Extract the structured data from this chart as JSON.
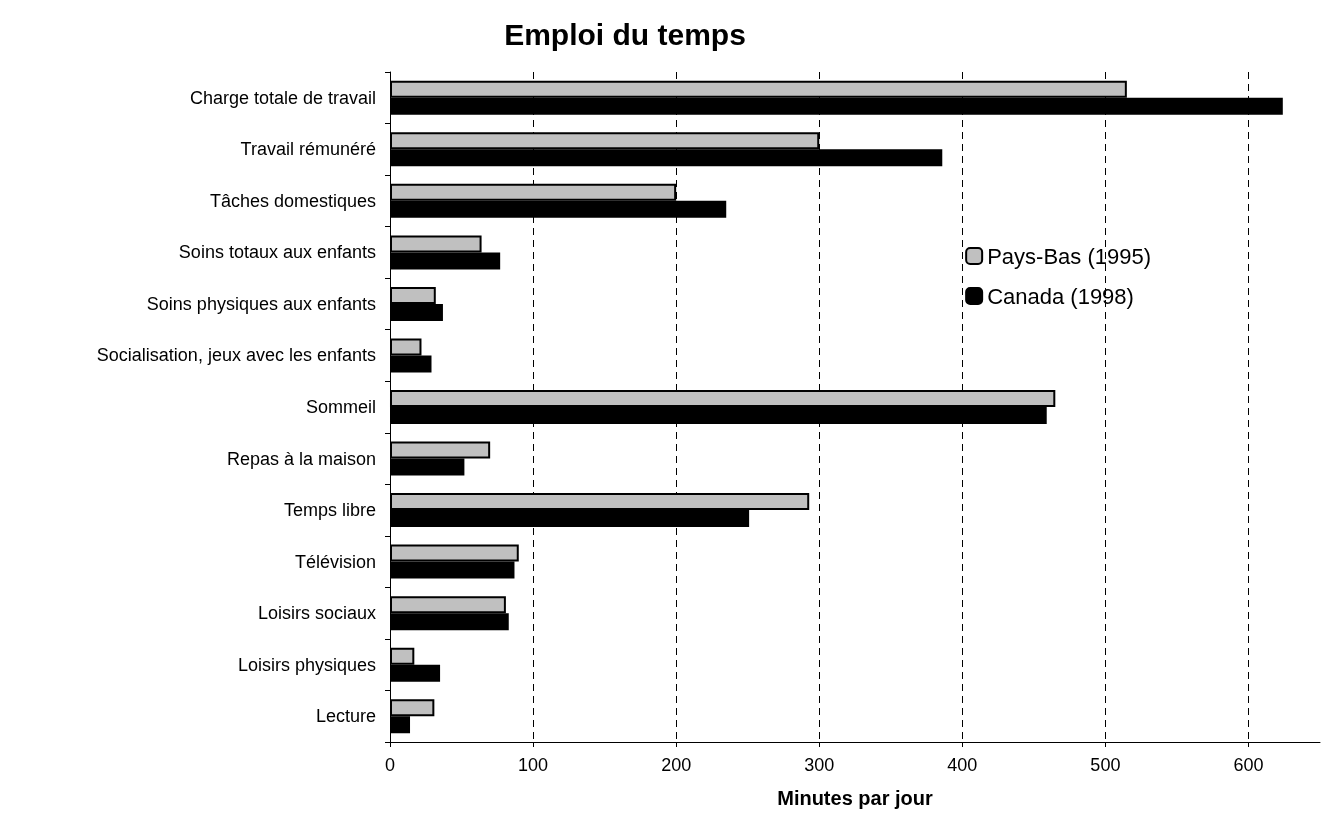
{
  "chart_data": {
    "type": "bar",
    "orientation": "horizontal",
    "title": "Emploi du temps",
    "xlabel": "Minutes par jour",
    "categories": [
      "Charge totale de travail",
      "Travail rémunéré",
      "Tâches domestiques",
      "Soins totaux aux enfants",
      "Soins physiques aux enfants",
      "Socialisation, jeux avec les enfants",
      "Sommeil",
      "Repas à la maison",
      "Temps libre",
      "Télévision",
      "Loisirs sociaux",
      "Loisirs physiques",
      "Lecture"
    ],
    "series": [
      {
        "name": "Pays-Bas (1995)",
        "color": "#c0c0c0",
        "values": [
          515,
          300,
          200,
          64,
          32,
          22,
          465,
          70,
          293,
          90,
          81,
          17,
          31
        ]
      },
      {
        "name": "Canada (1998)",
        "color": "#000000",
        "values": [
          624,
          386,
          235,
          77,
          37,
          29,
          459,
          52,
          251,
          87,
          83,
          35,
          14
        ]
      }
    ],
    "xlim": [
      0,
      650
    ],
    "xticks": [
      0,
      100,
      200,
      300,
      400,
      500,
      600
    ],
    "grid": "x",
    "legend": "right"
  }
}
